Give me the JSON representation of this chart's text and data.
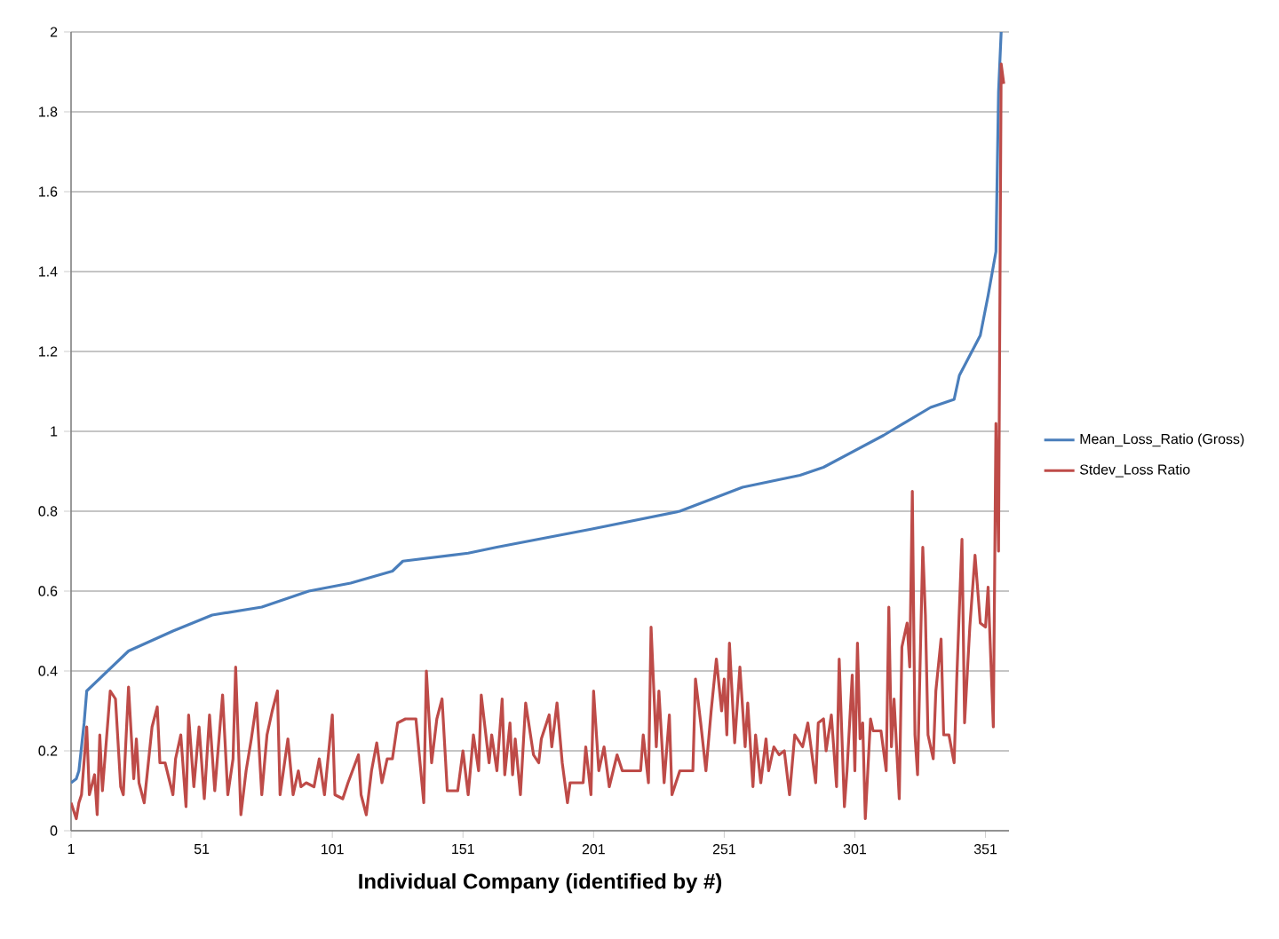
{
  "chart_data": {
    "type": "line",
    "xlabel": "Individual Company (identified by #)",
    "xlim": [
      1,
      360
    ],
    "xticks": [
      1,
      51,
      101,
      151,
      201,
      251,
      301,
      351
    ],
    "ylim": [
      0,
      2
    ],
    "yticks": [
      0,
      0.2,
      0.4,
      0.6,
      0.8,
      1,
      1.2,
      1.4,
      1.6,
      1.8,
      2
    ],
    "grid": "y",
    "legend": "right",
    "marker": "none",
    "line_style": "solid",
    "series": [
      {
        "name": "Mean_Loss_Ratio (Gross)",
        "color": "#4a7ebb",
        "x": [
          1,
          3,
          4,
          6,
          7,
          15,
          23,
          40,
          55,
          74,
          92,
          108,
          124,
          128,
          153,
          164,
          200,
          234,
          258,
          280,
          289,
          312,
          330,
          339,
          341,
          349,
          352,
          355,
          356,
          357
        ],
        "values": [
          0.12,
          0.13,
          0.15,
          0.27,
          0.35,
          0.4,
          0.45,
          0.5,
          0.54,
          0.56,
          0.6,
          0.62,
          0.65,
          0.675,
          0.695,
          0.71,
          0.755,
          0.8,
          0.86,
          0.89,
          0.91,
          0.99,
          1.06,
          1.08,
          1.14,
          1.24,
          1.34,
          1.45,
          1.85,
          2.0
        ]
      },
      {
        "name": "Stdev_Loss Ratio",
        "color": "#be4b48",
        "x": [
          1,
          3,
          4,
          5,
          7,
          8,
          10,
          11,
          12,
          13,
          16,
          18,
          20,
          21,
          23,
          25,
          26,
          27,
          29,
          32,
          34,
          35,
          37,
          40,
          41,
          43,
          45,
          46,
          48,
          50,
          52,
          54,
          56,
          59,
          61,
          63,
          64,
          66,
          68,
          70,
          72,
          74,
          76,
          78,
          80,
          81,
          84,
          86,
          88,
          89,
          91,
          94,
          96,
          98,
          101,
          102,
          105,
          107,
          111,
          112,
          114,
          116,
          118,
          120,
          122,
          124,
          126,
          129,
          133,
          136,
          137,
          139,
          141,
          143,
          145,
          149,
          151,
          153,
          155,
          157,
          158,
          161,
          162,
          164,
          166,
          167,
          169,
          170,
          171,
          173,
          175,
          178,
          180,
          181,
          184,
          185,
          187,
          189,
          191,
          192,
          197,
          198,
          200,
          201,
          203,
          205,
          207,
          210,
          212,
          219,
          220,
          222,
          223,
          225,
          226,
          228,
          230,
          231,
          234,
          239,
          240,
          242,
          244,
          246,
          248,
          250,
          251,
          252,
          253,
          255,
          257,
          259,
          260,
          262,
          263,
          265,
          267,
          268,
          270,
          272,
          274,
          276,
          278,
          280,
          281,
          283,
          286,
          287,
          289,
          290,
          292,
          294,
          295,
          297,
          298,
          300,
          301,
          302,
          303,
          304,
          305,
          307,
          308,
          311,
          313,
          314,
          315,
          316,
          318,
          319,
          321,
          322,
          323,
          324,
          325,
          327,
          328,
          329,
          331,
          332,
          334,
          335,
          337,
          339,
          340,
          342,
          343,
          345,
          347,
          349,
          351,
          352,
          354,
          355,
          356,
          357,
          358
        ],
        "values": [
          0.07,
          0.03,
          0.07,
          0.09,
          0.26,
          0.09,
          0.14,
          0.04,
          0.24,
          0.1,
          0.35,
          0.33,
          0.11,
          0.09,
          0.36,
          0.13,
          0.23,
          0.12,
          0.07,
          0.26,
          0.31,
          0.17,
          0.17,
          0.09,
          0.18,
          0.24,
          0.06,
          0.29,
          0.11,
          0.26,
          0.08,
          0.29,
          0.1,
          0.34,
          0.09,
          0.18,
          0.41,
          0.04,
          0.15,
          0.23,
          0.32,
          0.09,
          0.24,
          0.3,
          0.35,
          0.09,
          0.23,
          0.09,
          0.15,
          0.11,
          0.12,
          0.11,
          0.18,
          0.09,
          0.29,
          0.09,
          0.08,
          0.12,
          0.19,
          0.09,
          0.04,
          0.15,
          0.22,
          0.12,
          0.18,
          0.18,
          0.27,
          0.28,
          0.28,
          0.07,
          0.4,
          0.17,
          0.28,
          0.33,
          0.1,
          0.1,
          0.2,
          0.09,
          0.24,
          0.15,
          0.34,
          0.17,
          0.24,
          0.15,
          0.33,
          0.14,
          0.27,
          0.14,
          0.23,
          0.09,
          0.32,
          0.19,
          0.17,
          0.23,
          0.29,
          0.21,
          0.32,
          0.17,
          0.07,
          0.12,
          0.12,
          0.21,
          0.09,
          0.35,
          0.15,
          0.21,
          0.11,
          0.19,
          0.15,
          0.15,
          0.24,
          0.12,
          0.51,
          0.21,
          0.35,
          0.12,
          0.29,
          0.09,
          0.15,
          0.15,
          0.38,
          0.27,
          0.15,
          0.3,
          0.43,
          0.3,
          0.38,
          0.24,
          0.47,
          0.22,
          0.41,
          0.21,
          0.32,
          0.11,
          0.24,
          0.12,
          0.23,
          0.15,
          0.21,
          0.19,
          0.2,
          0.09,
          0.24,
          0.22,
          0.21,
          0.27,
          0.12,
          0.27,
          0.28,
          0.2,
          0.29,
          0.11,
          0.43,
          0.06,
          0.15,
          0.39,
          0.15,
          0.47,
          0.23,
          0.27,
          0.03,
          0.28,
          0.25,
          0.25,
          0.15,
          0.56,
          0.21,
          0.33,
          0.08,
          0.46,
          0.52,
          0.41,
          0.85,
          0.24,
          0.14,
          0.71,
          0.54,
          0.24,
          0.18,
          0.35,
          0.48,
          0.24,
          0.24,
          0.17,
          0.38,
          0.73,
          0.27,
          0.51,
          0.69,
          0.52,
          0.51,
          0.61,
          0.26,
          1.02,
          0.7,
          1.92,
          1.87
        ]
      }
    ]
  }
}
